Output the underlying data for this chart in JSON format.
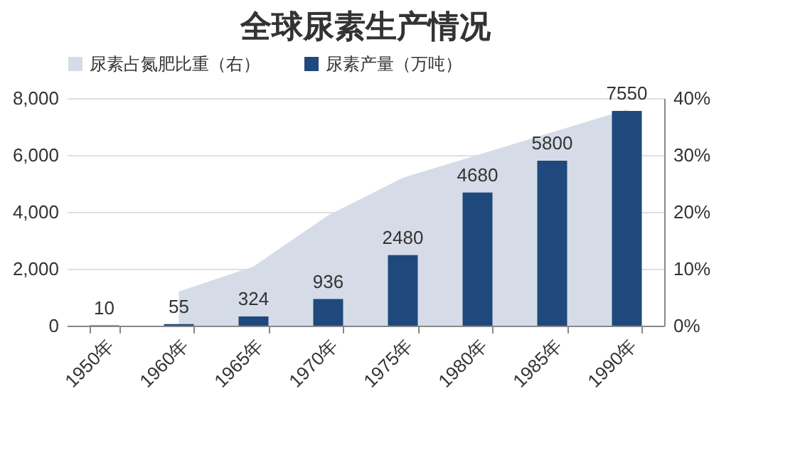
{
  "chart_data": {
    "type": "bar",
    "title": "全球尿素生产情况",
    "categories": [
      "1950年",
      "1960年",
      "1965年",
      "1970年",
      "1975年",
      "1980年",
      "1985年",
      "1990年"
    ],
    "series": [
      {
        "name": "尿素占氮肥比重（右）",
        "type": "area",
        "axis": "y2",
        "color": "#d5dce8",
        "values": [
          null,
          6,
          10.4,
          19.4,
          26,
          30,
          34,
          38
        ]
      },
      {
        "name": "尿素产量（万吨）",
        "color": "#1f497d",
        "values": [
          10,
          55,
          324,
          936,
          2480,
          4680,
          5800,
          7550
        ],
        "value_labels": [
          "10",
          "55",
          "324",
          "936",
          "2480",
          "4680",
          "5800",
          "7550"
        ]
      }
    ],
    "ylim": [
      0,
      8000
    ],
    "yticks": [
      {
        "value": 0,
        "label": "0"
      },
      {
        "value": 2000,
        "label": "2,000"
      },
      {
        "value": 4000,
        "label": "4,000"
      },
      {
        "value": 6000,
        "label": "6,000"
      },
      {
        "value": 8000,
        "label": "8,000"
      }
    ],
    "y2lim": [
      0,
      40
    ],
    "y2ticks": [
      {
        "value": 0,
        "label": "0%"
      },
      {
        "value": 10,
        "label": "10%"
      },
      {
        "value": 20,
        "label": "20%"
      },
      {
        "value": 30,
        "label": "30%"
      },
      {
        "value": 40,
        "label": "40%"
      }
    ],
    "grid": "y",
    "legend": "top"
  }
}
